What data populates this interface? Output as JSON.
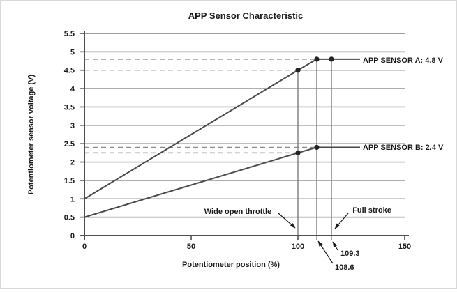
{
  "figure": {
    "title": "APP Sensor Characteristic"
  },
  "chart_data": {
    "type": "line",
    "title": "APP Sensor Characteristic",
    "xlabel": "Potentiometer position (%)",
    "ylabel": "Potentiometer sensor voltage (V)",
    "xlim": [
      0,
      150
    ],
    "ylim": [
      0,
      5.5
    ],
    "x_ticks": [
      "0",
      "50",
      "100",
      "150"
    ],
    "y_ticks": [
      "0",
      "0.5",
      "1",
      "1.5",
      "2",
      "2.5",
      "3",
      "3.5",
      "4",
      "4.5",
      "5",
      "5.5"
    ],
    "grid": "horizontal",
    "legend_position": "inline-right",
    "series": [
      {
        "name": "APP SENSOR A",
        "label": "APP SENSOR A: 4.8 V",
        "points": [
          [
            0,
            1.0
          ],
          [
            100,
            4.5
          ],
          [
            108.6,
            4.8
          ],
          [
            109.3,
            4.8
          ]
        ],
        "markers": [
          [
            100,
            4.5
          ],
          [
            108.6,
            4.8
          ],
          [
            109.3,
            4.8
          ]
        ]
      },
      {
        "name": "APP SENSOR B",
        "label": "APP SENSOR B: 2.4 V",
        "points": [
          [
            0,
            0.5
          ],
          [
            100,
            2.25
          ],
          [
            108.6,
            2.4
          ]
        ],
        "markers": [
          [
            100,
            2.25
          ],
          [
            108.6,
            2.4
          ]
        ]
      }
    ],
    "dashed_reference_lines": [
      {
        "v": 4.8,
        "to_x": 108.6
      },
      {
        "v": 4.5,
        "to_x": 100
      },
      {
        "v": 2.4,
        "to_x": 108.6
      },
      {
        "v": 2.25,
        "to_x": 100
      }
    ],
    "vertical_lines": [
      {
        "x": 100,
        "top_v": 4.5,
        "tick_below_axis": false
      },
      {
        "x": 108.6,
        "top_v": 4.8,
        "tick_below_axis": true
      },
      {
        "x": 109.3,
        "top_v": 4.8,
        "tick_below_axis": true
      }
    ],
    "annotations": [
      {
        "text": "Wide open throttle",
        "points_to_x": 100
      },
      {
        "text": "Full stroke",
        "points_to_x": 109.3
      },
      {
        "text": "108.6",
        "points_to_x": 108.6
      },
      {
        "text": "109.3",
        "points_to_x": 109.3
      }
    ]
  },
  "colors": {
    "background": "#ffffff",
    "text": "#1a1a1a",
    "grid": "#7d7d7d",
    "axis": "#4f4f4f",
    "series_line": "#4a4a4a",
    "marker": "#222222",
    "dashed_line": "#8c8c8c"
  }
}
